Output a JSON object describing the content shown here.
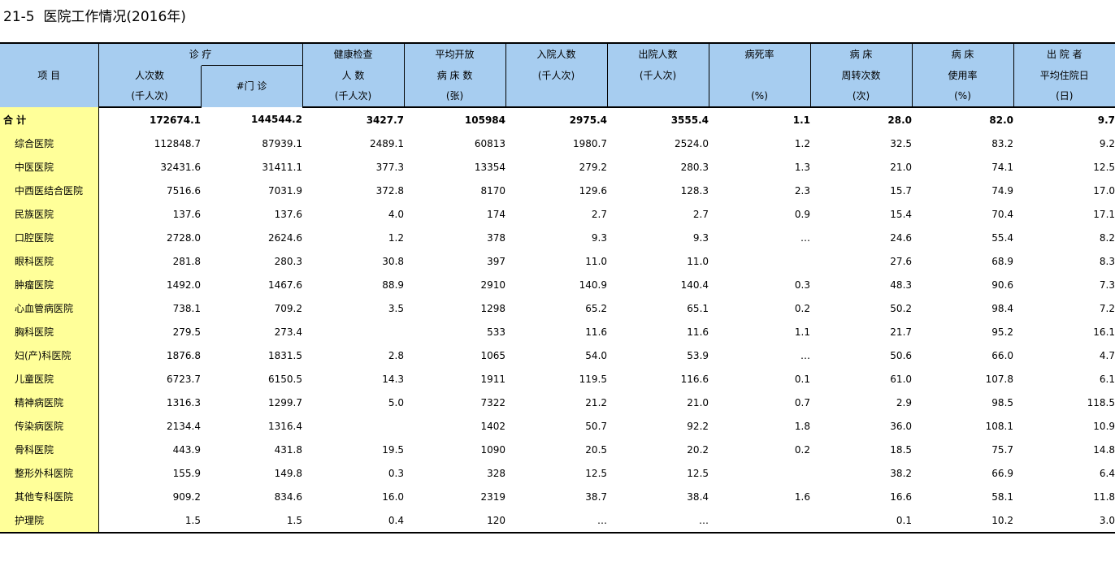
{
  "title": "21-5  医院工作情况(2016年)",
  "headers": {
    "item": "项  目",
    "visits_l1": "诊  疗",
    "visits_l2": "人次数",
    "visits_l3": "(千人次)",
    "outpatient": "#门 诊",
    "checkup_l1": "健康检查",
    "checkup_l2": "人  数",
    "checkup_l3": "(千人次)",
    "beds_l1": "平均开放",
    "beds_l2": "病 床 数",
    "beds_l3": "(张)",
    "admit_l1": "入院人数",
    "admit_l2": "(千人次)",
    "discharge_l1": "出院人数",
    "discharge_l2": "(千人次)",
    "mortality_l1": "病死率",
    "mortality_l3": "(%)",
    "turnover_l1": "病  床",
    "turnover_l2": "周转次数",
    "turnover_l3": "(次)",
    "usage_l1": "病 床",
    "usage_l2": "使用率",
    "usage_l3": "(%)",
    "stay_l1": "出 院 者",
    "stay_l2": "平均住院日",
    "stay_l3": "(日)"
  },
  "rows": [
    {
      "name": "合    计",
      "visits": "172674.1",
      "outpatient": "144544.2",
      "checkup": "3427.7",
      "beds": "105984",
      "admit": "2975.4",
      "discharge": "3555.4",
      "mortality": "1.1",
      "turnover": "28.0",
      "usage": "82.0",
      "stay": "9.7"
    },
    {
      "name": "综合医院",
      "visits": "112848.7",
      "outpatient": "87939.1",
      "checkup": "2489.1",
      "beds": "60813",
      "admit": "1980.7",
      "discharge": "2524.0",
      "mortality": "1.2",
      "turnover": "32.5",
      "usage": "83.2",
      "stay": "9.2"
    },
    {
      "name": "中医医院",
      "visits": "32431.6",
      "outpatient": "31411.1",
      "checkup": "377.3",
      "beds": "13354",
      "admit": "279.2",
      "discharge": "280.3",
      "mortality": "1.3",
      "turnover": "21.0",
      "usage": "74.1",
      "stay": "12.5"
    },
    {
      "name": "中西医结合医院",
      "visits": "7516.6",
      "outpatient": "7031.9",
      "checkup": "372.8",
      "beds": "8170",
      "admit": "129.6",
      "discharge": "128.3",
      "mortality": "2.3",
      "turnover": "15.7",
      "usage": "74.9",
      "stay": "17.0"
    },
    {
      "name": "民族医院",
      "visits": "137.6",
      "outpatient": "137.6",
      "checkup": "4.0",
      "beds": "174",
      "admit": "2.7",
      "discharge": "2.7",
      "mortality": "0.9",
      "turnover": "15.4",
      "usage": "70.4",
      "stay": "17.1"
    },
    {
      "name": "口腔医院",
      "visits": "2728.0",
      "outpatient": "2624.6",
      "checkup": "1.2",
      "beds": "378",
      "admit": "9.3",
      "discharge": "9.3",
      "mortality": "…",
      "turnover": "24.6",
      "usage": "55.4",
      "stay": "8.2"
    },
    {
      "name": "眼科医院",
      "visits": "281.8",
      "outpatient": "280.3",
      "checkup": "30.8",
      "beds": "397",
      "admit": "11.0",
      "discharge": "11.0",
      "mortality": "",
      "turnover": "27.6",
      "usage": "68.9",
      "stay": "8.3"
    },
    {
      "name": "肿瘤医院",
      "visits": "1492.0",
      "outpatient": "1467.6",
      "checkup": "88.9",
      "beds": "2910",
      "admit": "140.9",
      "discharge": "140.4",
      "mortality": "0.3",
      "turnover": "48.3",
      "usage": "90.6",
      "stay": "7.3"
    },
    {
      "name": "心血管病医院",
      "visits": "738.1",
      "outpatient": "709.2",
      "checkup": "3.5",
      "beds": "1298",
      "admit": "65.2",
      "discharge": "65.1",
      "mortality": "0.2",
      "turnover": "50.2",
      "usage": "98.4",
      "stay": "7.2"
    },
    {
      "name": "胸科医院",
      "visits": "279.5",
      "outpatient": "273.4",
      "checkup": "",
      "beds": "533",
      "admit": "11.6",
      "discharge": "11.6",
      "mortality": "1.1",
      "turnover": "21.7",
      "usage": "95.2",
      "stay": "16.1"
    },
    {
      "name": "妇(产)科医院",
      "visits": "1876.8",
      "outpatient": "1831.5",
      "checkup": "2.8",
      "beds": "1065",
      "admit": "54.0",
      "discharge": "53.9",
      "mortality": "…",
      "turnover": "50.6",
      "usage": "66.0",
      "stay": "4.7"
    },
    {
      "name": "儿童医院",
      "visits": "6723.7",
      "outpatient": "6150.5",
      "checkup": "14.3",
      "beds": "1911",
      "admit": "119.5",
      "discharge": "116.6",
      "mortality": "0.1",
      "turnover": "61.0",
      "usage": "107.8",
      "stay": "6.1"
    },
    {
      "name": "精神病医院",
      "visits": "1316.3",
      "outpatient": "1299.7",
      "checkup": "5.0",
      "beds": "7322",
      "admit": "21.2",
      "discharge": "21.0",
      "mortality": "0.7",
      "turnover": "2.9",
      "usage": "98.5",
      "stay": "118.5"
    },
    {
      "name": "传染病医院",
      "visits": "2134.4",
      "outpatient": "1316.4",
      "checkup": "",
      "beds": "1402",
      "admit": "50.7",
      "discharge": "92.2",
      "mortality": "1.8",
      "turnover": "36.0",
      "usage": "108.1",
      "stay": "10.9"
    },
    {
      "name": "骨科医院",
      "visits": "443.9",
      "outpatient": "431.8",
      "checkup": "19.5",
      "beds": "1090",
      "admit": "20.5",
      "discharge": "20.2",
      "mortality": "0.2",
      "turnover": "18.5",
      "usage": "75.7",
      "stay": "14.8"
    },
    {
      "name": "整形外科医院",
      "visits": "155.9",
      "outpatient": "149.8",
      "checkup": "0.3",
      "beds": "328",
      "admit": "12.5",
      "discharge": "12.5",
      "mortality": "",
      "turnover": "38.2",
      "usage": "66.9",
      "stay": "6.4"
    },
    {
      "name": "其他专科医院",
      "visits": "909.2",
      "outpatient": "834.6",
      "checkup": "16.0",
      "beds": "2319",
      "admit": "38.7",
      "discharge": "38.4",
      "mortality": "1.6",
      "turnover": "16.6",
      "usage": "58.1",
      "stay": "11.8"
    },
    {
      "name": "护理院",
      "visits": "1.5",
      "outpatient": "1.5",
      "checkup": "0.4",
      "beds": "120",
      "admit": "…",
      "discharge": "…",
      "mortality": "",
      "turnover": "0.1",
      "usage": "10.2",
      "stay": "3.0"
    }
  ]
}
